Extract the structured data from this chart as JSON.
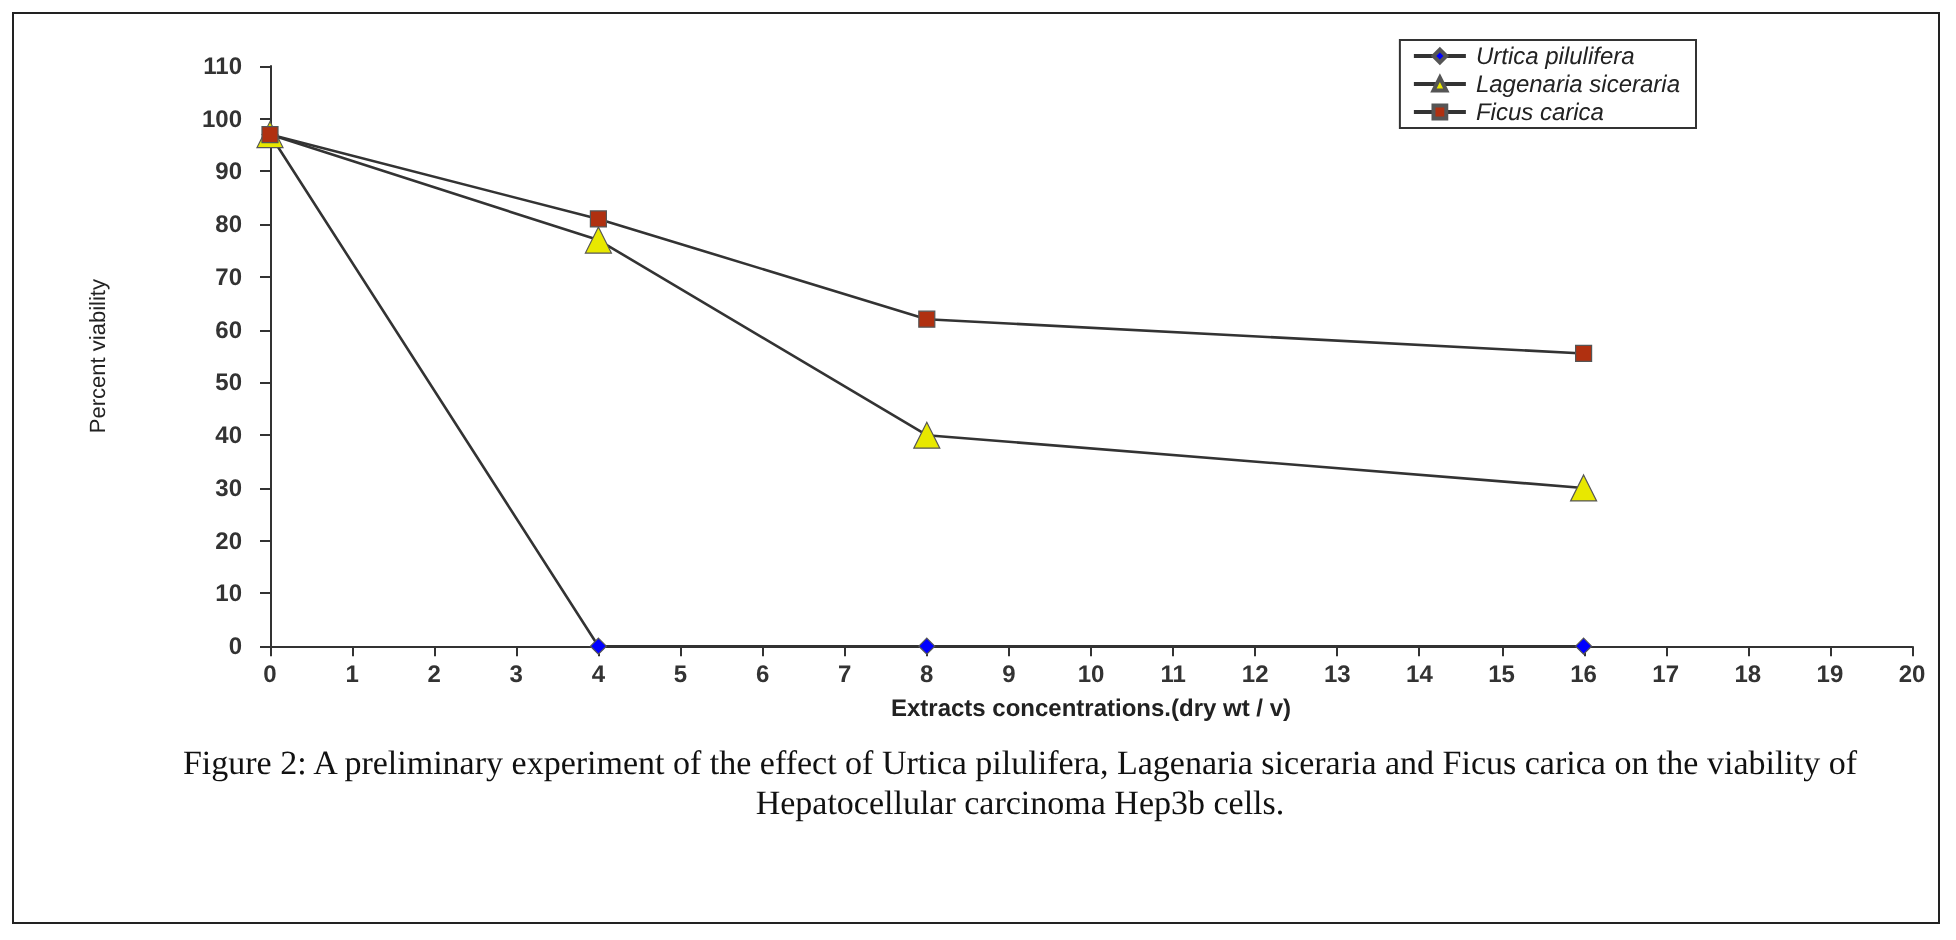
{
  "chart_data": {
    "type": "line",
    "xlabel": "Extracts concentrations.(dry wt / v)",
    "ylabel": "Percent viability",
    "x": [
      0,
      4,
      8,
      16
    ],
    "series": [
      {
        "name": "Urtica pilulifera",
        "color": "#0000ff",
        "marker": "diamond",
        "values": [
          97,
          0,
          0,
          0
        ]
      },
      {
        "name": "Lagenaria siceraria",
        "color": "#e8e800",
        "marker": "triangle",
        "values": [
          97,
          77,
          40,
          30
        ]
      },
      {
        "name": "Ficus carica",
        "color": "#b03010",
        "marker": "square",
        "values": [
          97,
          81,
          62,
          55.5
        ]
      }
    ],
    "xlim": [
      0,
      20
    ],
    "xticks": [
      0,
      1,
      2,
      3,
      4,
      5,
      6,
      7,
      8,
      9,
      10,
      11,
      12,
      13,
      14,
      15,
      16,
      17,
      18,
      19,
      20
    ],
    "ylim": [
      0,
      110
    ],
    "yticks": [
      0,
      10,
      20,
      30,
      40,
      50,
      60,
      70,
      80,
      90,
      100,
      110
    ],
    "grid": false,
    "legend": "top right",
    "line_style": "solid",
    "annotations": [
      "Figure 2: A preliminary experiment of the effect of Urtica pilulifera, Lagenaria siceraria and Ficus carica on the viability of Hepatocellular carcinoma Hep3b cells."
    ]
  }
}
